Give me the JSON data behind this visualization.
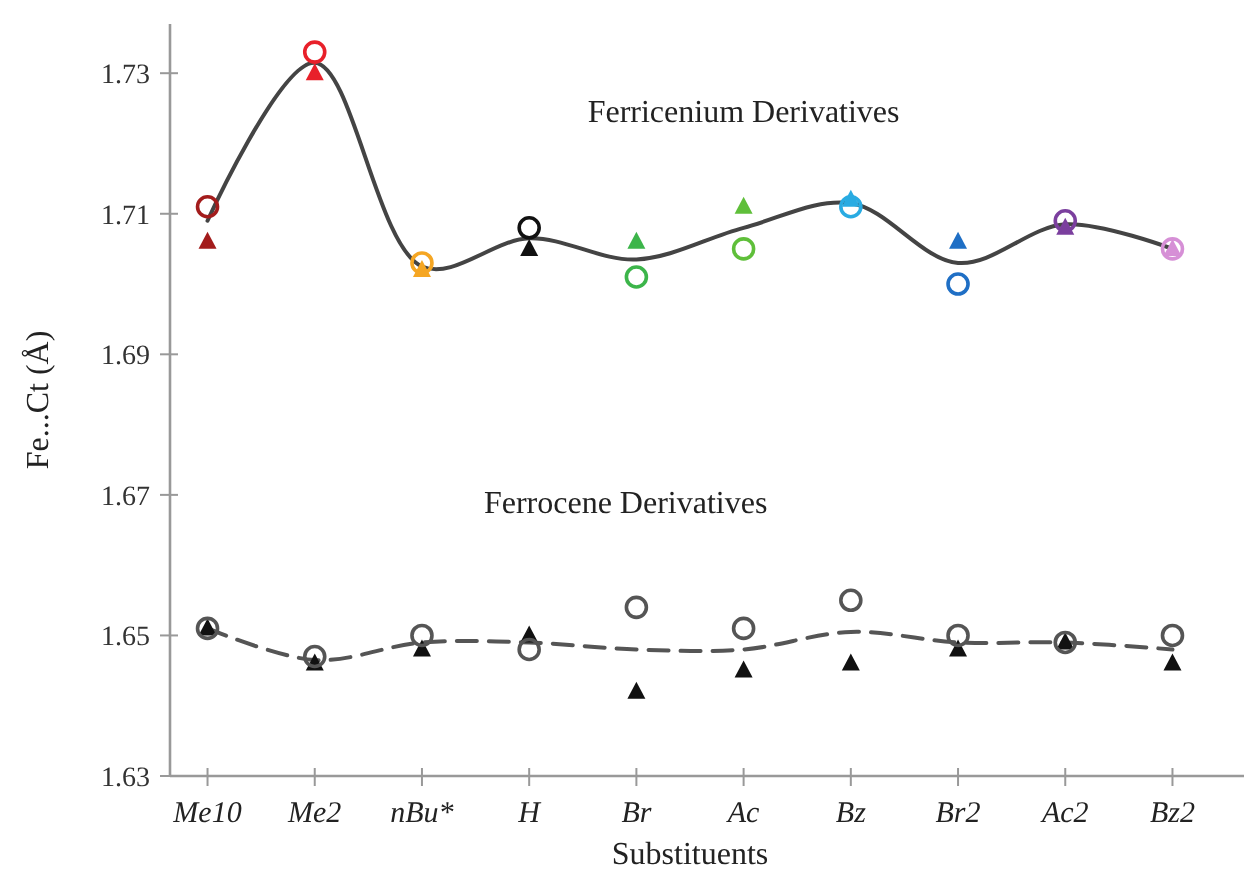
{
  "chart_data": {
    "type": "scatter",
    "xlabel": "Substituents",
    "ylabel": "Fe...Ct (Å)",
    "categories": [
      "Me10",
      "Me2",
      "nBu*",
      "H",
      "Br",
      "Ac",
      "Bz",
      "Br2",
      "Ac2",
      "Bz2"
    ],
    "ylim": [
      1.63,
      1.737
    ],
    "yticks": [
      1.63,
      1.65,
      1.67,
      1.69,
      1.71,
      1.73
    ],
    "grid": false,
    "annotations": [
      "Ferricenium Derivatives",
      "Ferrocene Derivatives"
    ],
    "series": [
      {
        "type": "line",
        "color": "#444444",
        "marker": "none",
        "line_style": "solid",
        "values": [
          1.709,
          1.7315,
          1.7025,
          1.7065,
          1.7035,
          1.708,
          1.7115,
          1.703,
          1.7085,
          1.705
        ]
      },
      {
        "type": "line",
        "color": "#555555",
        "marker": "none",
        "line_style": "dashed",
        "values": [
          1.651,
          1.6465,
          1.649,
          1.649,
          1.648,
          1.648,
          1.6505,
          1.649,
          1.649,
          1.648
        ]
      },
      {
        "marker": "triangle",
        "colors": [
          "#a31c1c",
          "#e8202a",
          "#f5a623",
          "#111111",
          "#3cb54a",
          "#5fbf3a",
          "#29abe2",
          "#1f6fc5",
          "#7b3f9e",
          "#d68fd6"
        ],
        "values": [
          1.706,
          1.73,
          1.702,
          1.705,
          1.706,
          1.711,
          1.712,
          1.706,
          1.708,
          1.705
        ]
      },
      {
        "marker": "circle",
        "colors": [
          "#a31c1c",
          "#e8202a",
          "#f5a623",
          "#111111",
          "#3cb54a",
          "#5fbf3a",
          "#29abe2",
          "#1f6fc5",
          "#7b3f9e",
          "#d68fd6"
        ],
        "values": [
          1.711,
          1.733,
          1.703,
          1.708,
          1.701,
          1.705,
          1.711,
          1.7,
          1.709,
          1.705
        ]
      },
      {
        "marker": "triangle",
        "color": "#111111",
        "values": [
          1.651,
          1.646,
          1.648,
          1.65,
          1.642,
          1.645,
          1.646,
          1.648,
          1.649,
          1.646
        ]
      },
      {
        "marker": "circle",
        "color": "#555555",
        "values": [
          1.651,
          1.647,
          1.65,
          1.648,
          1.654,
          1.651,
          1.655,
          1.65,
          1.649,
          1.65
        ]
      }
    ]
  }
}
